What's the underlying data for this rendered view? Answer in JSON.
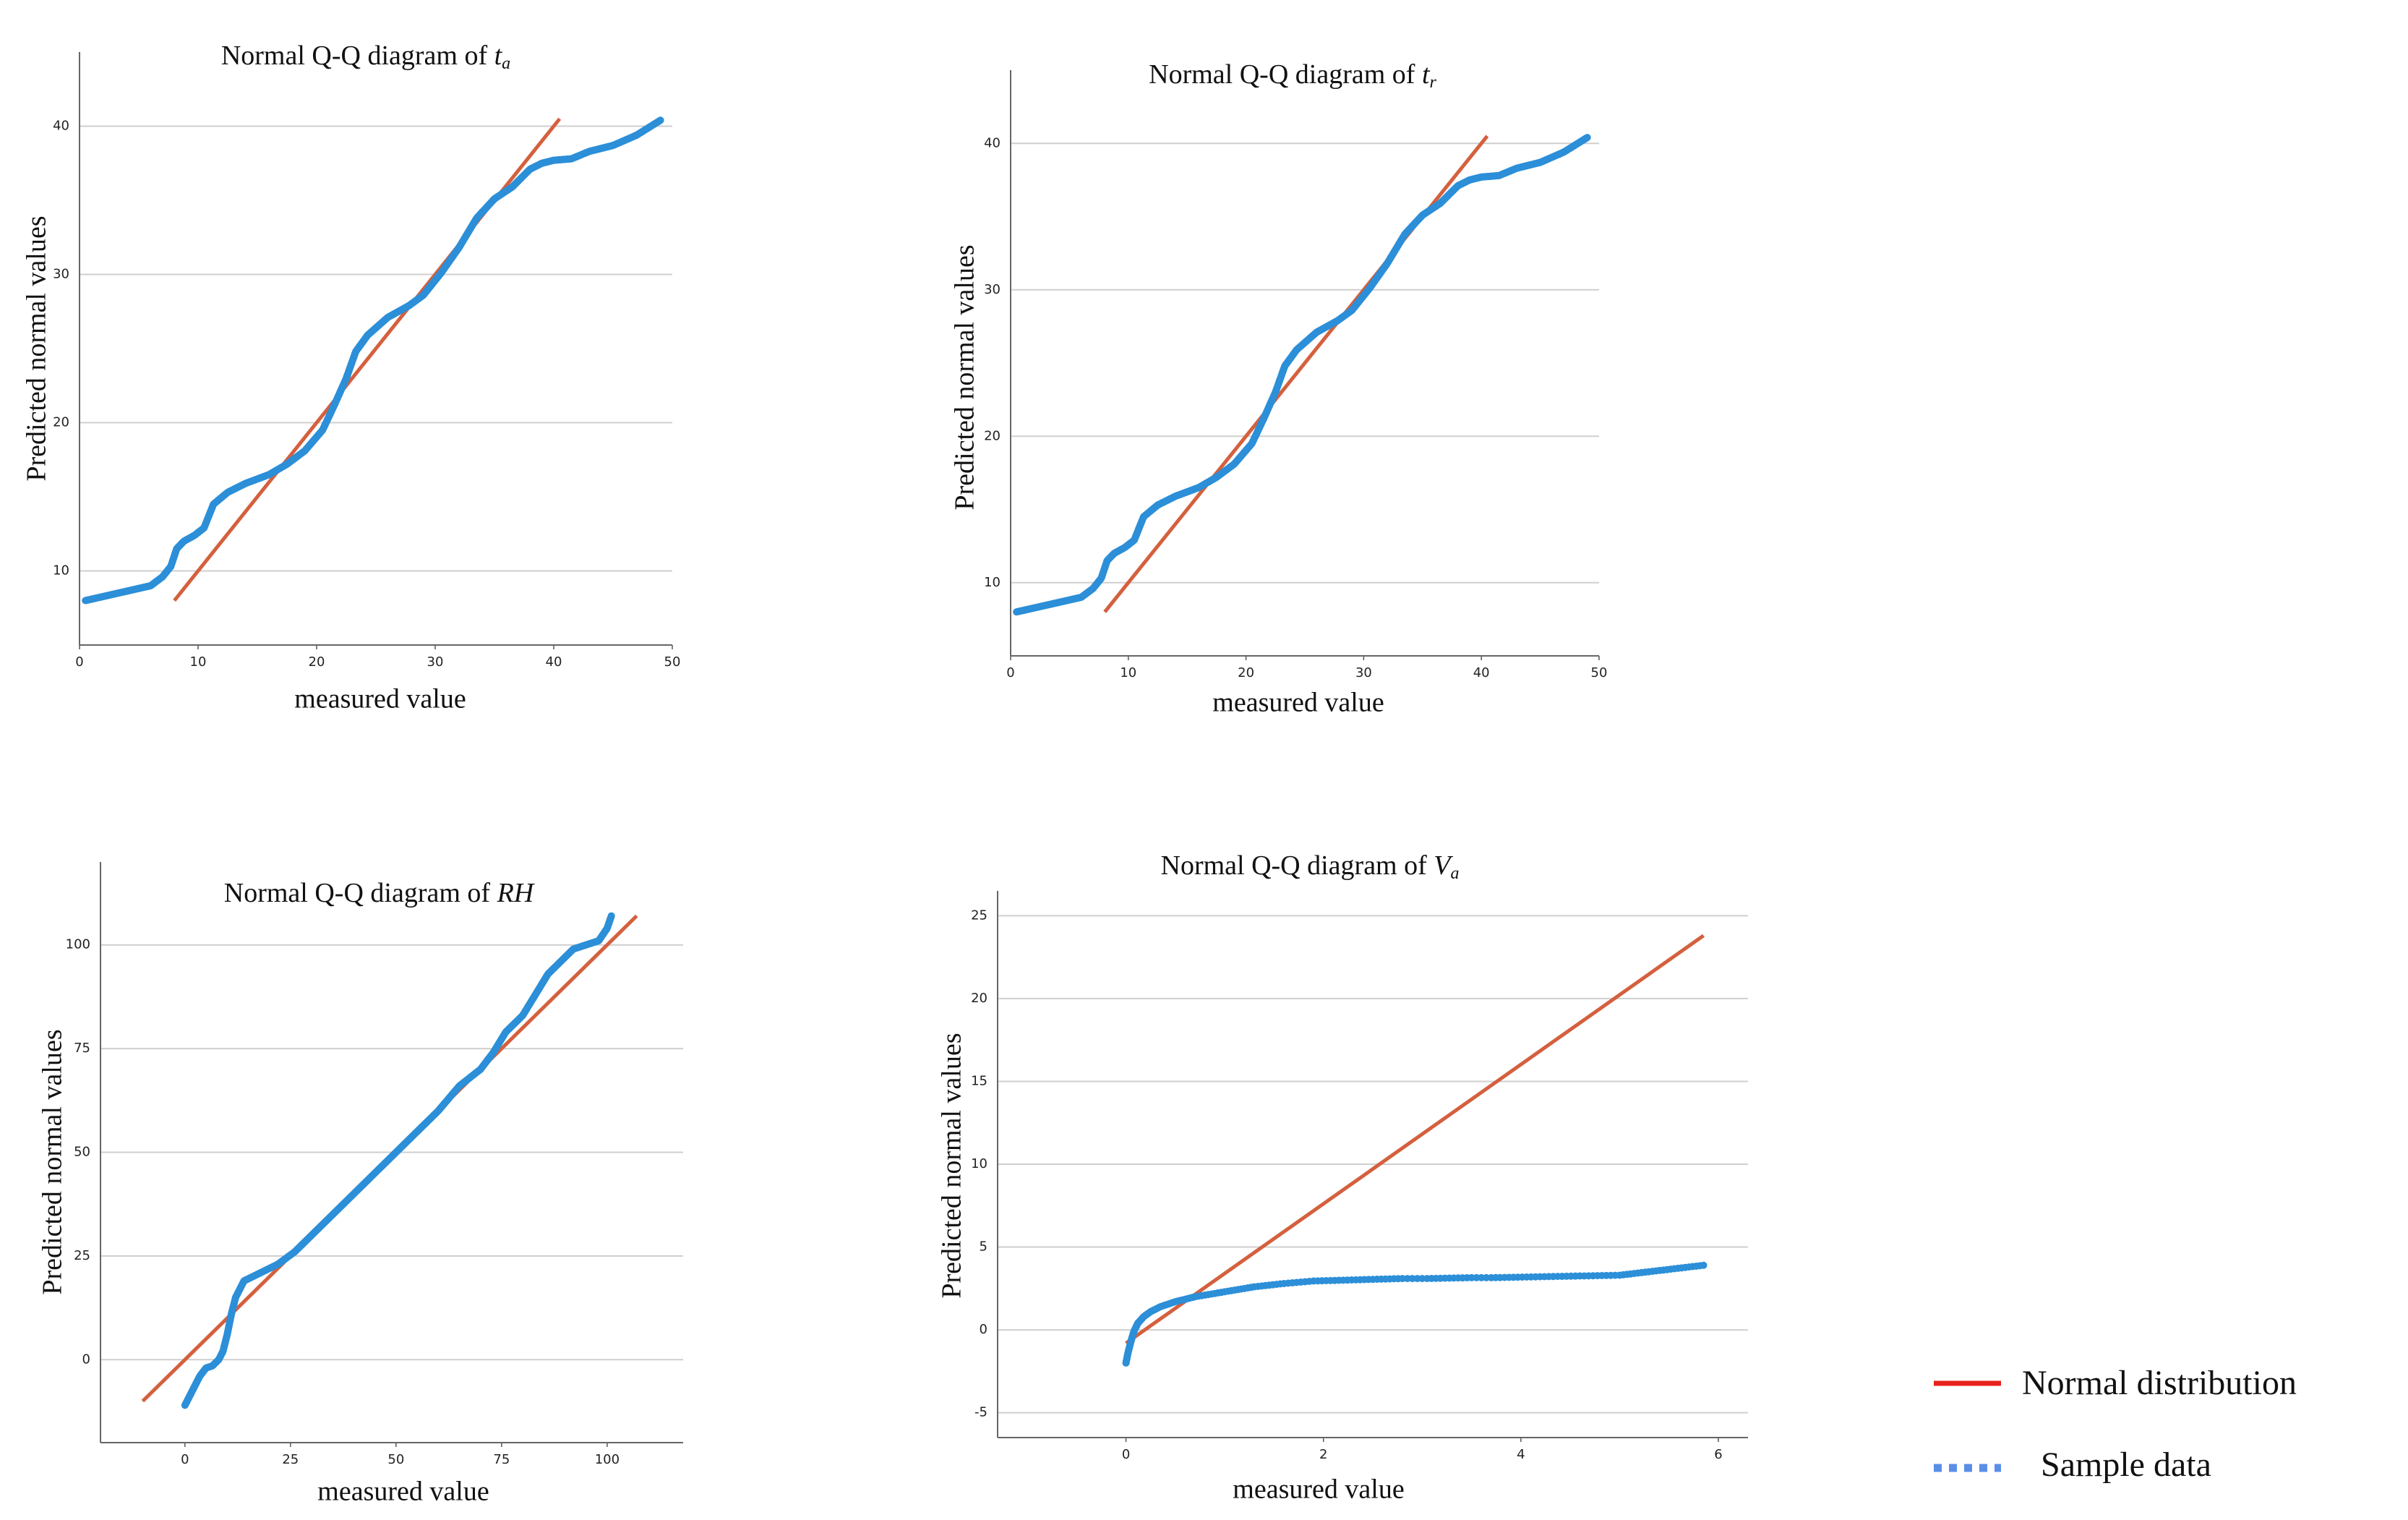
{
  "colors": {
    "normal_line": "#D4603E",
    "sample_points": "#2C8FD8",
    "grid": "#cfcfcf",
    "legend_line": "#E8211D",
    "legend_dots": "#5B8EE6"
  },
  "legend": {
    "line_label": "Normal distribution",
    "dots_label": "Sample data"
  },
  "chart_data": [
    {
      "type": "scatter",
      "title_prefix": "Normal Q-Q diagram of ",
      "title_var": "t",
      "title_sub": "a",
      "xlabel": "measured value",
      "ylabel": "Predicted normal values",
      "xlim": [
        0,
        50
      ],
      "ylim": [
        5,
        45
      ],
      "xticks": [
        0,
        10,
        20,
        30,
        40,
        50
      ],
      "yticks": [
        10,
        20,
        30,
        40
      ],
      "reference_line": [
        [
          8,
          8
        ],
        [
          40.5,
          40.5
        ]
      ],
      "sample_curve": [
        [
          0.5,
          8
        ],
        [
          6,
          9
        ],
        [
          7,
          9.6
        ],
        [
          7.7,
          10.3
        ],
        [
          8.2,
          11.5
        ],
        [
          8.8,
          12
        ],
        [
          9.7,
          12.4
        ],
        [
          10.5,
          12.9
        ],
        [
          11.3,
          14.5
        ],
        [
          12.5,
          15.3
        ],
        [
          14,
          15.9
        ],
        [
          16,
          16.5
        ],
        [
          17.5,
          17.2
        ],
        [
          19,
          18.1
        ],
        [
          20.5,
          19.5
        ],
        [
          21.5,
          21.2
        ],
        [
          22.5,
          23
        ],
        [
          23.3,
          24.8
        ],
        [
          24.3,
          25.9
        ],
        [
          26,
          27.1
        ],
        [
          27.8,
          27.9
        ],
        [
          29,
          28.6
        ],
        [
          30.5,
          30.1
        ],
        [
          32,
          31.8
        ],
        [
          33.5,
          33.8
        ],
        [
          35,
          35.1
        ],
        [
          36.5,
          35.9
        ],
        [
          38,
          37.1
        ],
        [
          39,
          37.5
        ],
        [
          40,
          37.7
        ],
        [
          41.5,
          37.8
        ],
        [
          43,
          38.3
        ],
        [
          45,
          38.7
        ],
        [
          47,
          39.4
        ],
        [
          49,
          40.4
        ]
      ]
    },
    {
      "type": "scatter",
      "title_prefix": "Normal Q-Q diagram of ",
      "title_var": "t",
      "title_sub": "r",
      "xlabel": "measured value",
      "ylabel": "Predicted normal values",
      "xlim": [
        0,
        50
      ],
      "ylim": [
        5,
        45
      ],
      "xticks": [
        0,
        10,
        20,
        30,
        40,
        50
      ],
      "yticks": [
        10,
        20,
        30,
        40
      ],
      "reference_line": [
        [
          8,
          8
        ],
        [
          40.5,
          40.5
        ]
      ],
      "sample_curve": [
        [
          0.5,
          8
        ],
        [
          6,
          9
        ],
        [
          7,
          9.6
        ],
        [
          7.7,
          10.3
        ],
        [
          8.2,
          11.5
        ],
        [
          8.8,
          12
        ],
        [
          9.7,
          12.4
        ],
        [
          10.5,
          12.9
        ],
        [
          11.3,
          14.5
        ],
        [
          12.5,
          15.3
        ],
        [
          14,
          15.9
        ],
        [
          16,
          16.5
        ],
        [
          17.5,
          17.2
        ],
        [
          19,
          18.1
        ],
        [
          20.5,
          19.5
        ],
        [
          21.5,
          21.2
        ],
        [
          22.5,
          23
        ],
        [
          23.3,
          24.8
        ],
        [
          24.3,
          25.9
        ],
        [
          26,
          27.1
        ],
        [
          27.8,
          27.9
        ],
        [
          29,
          28.6
        ],
        [
          30.5,
          30.1
        ],
        [
          32,
          31.8
        ],
        [
          33.5,
          33.8
        ],
        [
          35,
          35.1
        ],
        [
          36.5,
          35.9
        ],
        [
          38,
          37.1
        ],
        [
          39,
          37.5
        ],
        [
          40,
          37.7
        ],
        [
          41.5,
          37.8
        ],
        [
          43,
          38.3
        ],
        [
          45,
          38.7
        ],
        [
          47,
          39.4
        ],
        [
          49,
          40.4
        ]
      ]
    },
    {
      "type": "scatter",
      "title_prefix": "Normal Q-Q diagram of ",
      "title_var": "RH",
      "title_sub": "",
      "xlabel": "measured value",
      "ylabel": "Predicted normal values",
      "xlim": [
        -20,
        118
      ],
      "ylim": [
        -20,
        120
      ],
      "xticks": [
        0,
        25,
        50,
        75,
        100
      ],
      "yticks": [
        0,
        25,
        50,
        75,
        100
      ],
      "reference_line": [
        [
          -10,
          -10
        ],
        [
          107,
          107
        ]
      ],
      "sample_curve": [
        [
          0,
          -11
        ],
        [
          2,
          -7
        ],
        [
          3.5,
          -4
        ],
        [
          5,
          -2
        ],
        [
          6.5,
          -1.5
        ],
        [
          8,
          0
        ],
        [
          9,
          2
        ],
        [
          10,
          6
        ],
        [
          11,
          11
        ],
        [
          12,
          15
        ],
        [
          14,
          19
        ],
        [
          18,
          21
        ],
        [
          22,
          23
        ],
        [
          26,
          26
        ],
        [
          30,
          30
        ],
        [
          35,
          35
        ],
        [
          40,
          40
        ],
        [
          45,
          45
        ],
        [
          50,
          50
        ],
        [
          55,
          55
        ],
        [
          60,
          60
        ],
        [
          65,
          66
        ],
        [
          70,
          70
        ],
        [
          73,
          74
        ],
        [
          76,
          79
        ],
        [
          80,
          83
        ],
        [
          83,
          88
        ],
        [
          86,
          93
        ],
        [
          89,
          96
        ],
        [
          92,
          99
        ],
        [
          95,
          100
        ],
        [
          98,
          101
        ],
        [
          100,
          104
        ],
        [
          101,
          107
        ]
      ]
    },
    {
      "type": "scatter",
      "title_prefix": "Normal Q-Q diagram of ",
      "title_var": "V",
      "title_sub": "a",
      "xlabel": "measured value",
      "ylabel": "Predicted normal values",
      "xlim": [
        -1.3,
        6.3
      ],
      "ylim": [
        -6.5,
        26.5
      ],
      "xticks": [
        0,
        2,
        4,
        6
      ],
      "yticks": [
        -5,
        0,
        5,
        10,
        15,
        20,
        25
      ],
      "reference_line": [
        [
          0,
          -0.8
        ],
        [
          5.85,
          23.8
        ]
      ],
      "sample_curve": [
        [
          0,
          -2
        ],
        [
          0.02,
          -1.4
        ],
        [
          0.05,
          -0.7
        ],
        [
          0.08,
          -0.1
        ],
        [
          0.12,
          0.4
        ],
        [
          0.18,
          0.8
        ],
        [
          0.25,
          1.1
        ],
        [
          0.35,
          1.4
        ],
        [
          0.5,
          1.7
        ],
        [
          0.7,
          2
        ],
        [
          1,
          2.3
        ],
        [
          1.3,
          2.6
        ],
        [
          1.6,
          2.8
        ],
        [
          1.9,
          2.95
        ],
        [
          2.2,
          3
        ],
        [
          2.5,
          3.05
        ],
        [
          2.8,
          3.1
        ],
        [
          2.95,
          3.1
        ],
        [
          3.05,
          3.1
        ],
        [
          3.5,
          3.15
        ],
        [
          3.7,
          3.15
        ],
        [
          5,
          3.3
        ],
        [
          5.85,
          3.9
        ]
      ]
    }
  ]
}
